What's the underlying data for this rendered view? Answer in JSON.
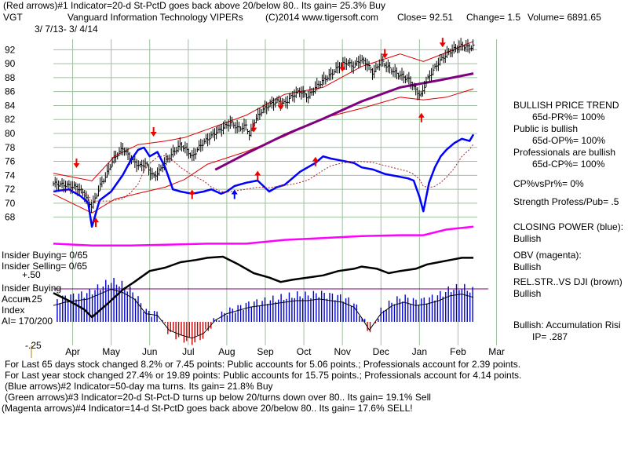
{
  "header": {
    "line1": "(Red arrows)#1 Indicator=20-d St-PctD goes back above 20/below 80..  Its gain= 25.3% Buy",
    "symbol": "VGT",
    "title": "Vanguard Information Technology VIPERs",
    "copyright": "(C)2014 www.tigersoft.com",
    "close": "Close=  92.51",
    "change": "Change= 1.5",
    "volume": "Volume= 6891.65",
    "date_range": "3/ 7/13- 3/ 4/14"
  },
  "right_panel": {
    "l1": "BULLISH PRICE TREND",
    "l2": "65d-PR%= 100%",
    "l3": "Public is bullish",
    "l4": "65d-OP%= 100%",
    "l5": "Professionals are bullish",
    "l6": "65d-CP%= 100%",
    "l7": "CP%vsPr%=  0%",
    "l8": "Strength Profess/Pub= .5",
    "l9": "CLOSING POWER (blue):",
    "l10": "Bullish",
    "l11": "OBV (magenta):",
    "l12": "Bullish",
    "l13": "REL.STR..VS DJI (brown)",
    "l14": "Bullish",
    "l15": "Bullish: Accumulation Risi",
    "l16": "IP=  .287"
  },
  "left_labels": {
    "insider_buying_ratio": "Insider Buying= 0/65",
    "insider_selling_ratio": "Insider Selling= 0/65",
    "plus50": "+.50",
    "insider_buying": "Insider Buying",
    "accum": "Accum",
    "plus25": "+.25",
    "index": "Index",
    "ai": "AI= 170/200",
    "minus25": "-.25"
  },
  "footer": {
    "f1": "For Last 65 days stock changed  8.2% or  7.45 points:  Public accounts for  5.06 points.;  Professionals account for  2.39 points.",
    "f2": "For Last year stock changed  27.4% or  19.89 points:  Public accounts for  15.75 points.;  Professionals account for  4.14 points.",
    "f3": "(Blue arrows)#2 Indicator=50-day ma turns. Its gain= 21.8% Buy",
    "f4": "(Green arrows)#3 Indicator=20-d St-Pct-D turns up below 20/turns down over 80.. Its gain= 19.1% Sell",
    "f5": "(Magenta arrows)#4 Indicator=14-d St-PctD goes back above 20/below 80.. Its gain= 17.6% SELL!"
  },
  "colors": {
    "price": "#000000",
    "bands": "#dd0000",
    "ma50": "#800080",
    "closing_power": "#0000ff",
    "obv": "#ff00ff",
    "rel_strength": "#000000",
    "accum_pos": "#0000cc",
    "accum_neg": "#cc0000",
    "grid": "#9ebf9e"
  },
  "chart_data": {
    "type": "line",
    "title": "Vanguard Information Technology VIPERs",
    "x_ticks": [
      "Apr",
      "May",
      "Jun",
      "Jul",
      "Aug",
      "Sep",
      "Oct",
      "Nov",
      "Dec",
      "Jan",
      "Feb",
      "Mar"
    ],
    "y_ticks": [
      68,
      70,
      72,
      74,
      76,
      78,
      80,
      82,
      84,
      86,
      88,
      90,
      92
    ],
    "ylim": [
      66.5,
      93.5
    ],
    "grid": true,
    "price_series": {
      "x": [
        0,
        0.3,
        0.6,
        0.8,
        0.9,
        1.0,
        1.1,
        1.2,
        1.35,
        1.5,
        1.6,
        1.8,
        1.95,
        2.1,
        2.25,
        2.4,
        2.5,
        2.6,
        2.75,
        2.9,
        3.1,
        3.3,
        3.5,
        3.6,
        3.8,
        4.0,
        4.2,
        4.4,
        4.6,
        4.8,
        5.0,
        5.1,
        5.2,
        5.4,
        5.6,
        5.8,
        6.0,
        6.2,
        6.4,
        6.6,
        6.8,
        7.0,
        7.2,
        7.4,
        7.6,
        7.8,
        7.95,
        8.1,
        8.3,
        8.5,
        8.7,
        8.9,
        9.1,
        9.25,
        9.4,
        9.5,
        9.55,
        9.65,
        9.8,
        10.0,
        10.2,
        10.4,
        10.6,
        10.8,
        10.9
      ],
      "y": [
        72.8,
        72.6,
        72.3,
        71.4,
        70.2,
        69.6,
        70.8,
        72.4,
        73.8,
        75.6,
        76.6,
        77.9,
        76.8,
        75.9,
        75.3,
        75.7,
        74.6,
        73.8,
        74.6,
        75.9,
        77.2,
        78.4,
        77.4,
        76.6,
        78.2,
        79.2,
        80.1,
        80.8,
        81.6,
        80.7,
        81.1,
        79.6,
        81.6,
        83.2,
        84.1,
        84.6,
        84.3,
        85.4,
        86.1,
        85.2,
        86.6,
        87.6,
        88.4,
        89.6,
        90.2,
        89.6,
        90.6,
        90.2,
        88.6,
        90.4,
        89.4,
        88.6,
        88.1,
        87.6,
        86.2,
        85.6,
        85.4,
        87.2,
        88.6,
        90.2,
        91.4,
        92.1,
        92.6,
        92.3,
        92.51
      ],
      "close": 92.51,
      "change": 1.5,
      "volume": 6891.65
    },
    "ma50": {
      "x": [
        4.2,
        5.0,
        6.0,
        7.0,
        8.0,
        9.0,
        10.0,
        10.9
      ],
      "y": [
        74.8,
        77.1,
        79.8,
        82.1,
        84.6,
        86.6,
        87.6,
        88.6
      ]
    },
    "upper_band": {
      "x": [
        0,
        1.0,
        1.6,
        2.2,
        2.9,
        3.4,
        4.0,
        5.0,
        6.0,
        7.0,
        8.0,
        9.0,
        9.6,
        10.2,
        10.9
      ],
      "y": [
        74.3,
        73.2,
        76.8,
        78.4,
        78.9,
        79.4,
        80.6,
        82.6,
        85.6,
        86.6,
        89.6,
        91.4,
        90.3,
        91.6,
        93.2
      ]
    },
    "lower_band": {
      "x": [
        0,
        1.0,
        1.6,
        2.2,
        2.9,
        3.4,
        4.0,
        5.0,
        6.0,
        7.0,
        8.0,
        9.0,
        9.6,
        10.2,
        10.9
      ],
      "y": [
        71.3,
        68.6,
        70.6,
        71.4,
        72.3,
        73.4,
        75.6,
        77.4,
        79.6,
        82.2,
        83.6,
        85.2,
        84.8,
        85.2,
        86.4
      ]
    },
    "red_arrows_down": {
      "x": [
        0.6,
        2.6,
        5.2,
        5.9,
        7.5,
        8.6,
        10.1
      ],
      "y": [
        75.5,
        80.0,
        80.6,
        83.8,
        89.3,
        91.2,
        92.8
      ]
    },
    "red_arrows_up": {
      "x": [
        1.1,
        3.6,
        5.3,
        6.8,
        9.55
      ],
      "y": [
        67.5,
        71.5,
        74.2,
        76.2,
        82.5
      ]
    },
    "blue_arrows_up": {
      "x": [
        4.7
      ],
      "y": [
        71.5
      ]
    },
    "closing_power": {
      "x": [
        0,
        0.4,
        0.7,
        0.9,
        1.0,
        1.2,
        1.5,
        1.8,
        2.0,
        2.2,
        2.35,
        2.5,
        2.7,
        2.9,
        3.1,
        3.3,
        3.6,
        3.9,
        4.1,
        4.35,
        4.5,
        4.7,
        5.0,
        5.3,
        5.6,
        5.8,
        6.0,
        6.2,
        6.4,
        6.6,
        6.8,
        7.0,
        7.2,
        7.5,
        7.8,
        8.0,
        8.3,
        8.6,
        8.9,
        9.2,
        9.35,
        9.5,
        9.6,
        9.75,
        9.9,
        10.05,
        10.2,
        10.4,
        10.6,
        10.8,
        10.9
      ],
      "v": [
        0.4,
        0.42,
        0.36,
        0.3,
        0.08,
        0.32,
        0.4,
        0.55,
        0.68,
        0.78,
        0.8,
        0.72,
        0.76,
        0.62,
        0.42,
        0.4,
        0.38,
        0.4,
        0.42,
        0.38,
        0.4,
        0.45,
        0.48,
        0.5,
        0.4,
        0.44,
        0.46,
        0.52,
        0.58,
        0.62,
        0.66,
        0.72,
        0.7,
        0.68,
        0.66,
        0.62,
        0.6,
        0.56,
        0.54,
        0.52,
        0.5,
        0.35,
        0.22,
        0.48,
        0.62,
        0.72,
        0.78,
        0.84,
        0.88,
        0.86,
        0.92
      ]
    },
    "obv": {
      "x": [
        0,
        1.0,
        2.0,
        3.0,
        4.0,
        5.0,
        6.0,
        7.0,
        8.0,
        9.0,
        9.6,
        10.2,
        10.9
      ],
      "v": [
        0.08,
        0.06,
        0.06,
        0.07,
        0.08,
        0.08,
        0.12,
        0.14,
        0.16,
        0.17,
        0.17,
        0.23,
        0.26
      ]
    },
    "rel_strength": {
      "x": [
        0,
        0.4,
        0.8,
        1.0,
        1.4,
        1.8,
        2.1,
        2.5,
        2.9,
        3.3,
        3.7,
        4.0,
        4.4,
        4.8,
        5.2,
        5.6,
        5.9,
        6.2,
        6.6,
        7.0,
        7.4,
        7.8,
        8.0,
        8.4,
        8.7,
        9.0,
        9.4,
        9.7,
        10.0,
        10.3,
        10.6,
        10.9
      ],
      "v": [
        0.62,
        0.55,
        0.47,
        0.4,
        0.52,
        0.65,
        0.72,
        0.82,
        0.85,
        0.9,
        0.92,
        0.94,
        0.95,
        0.88,
        0.8,
        0.76,
        0.72,
        0.74,
        0.76,
        0.78,
        0.82,
        0.84,
        0.86,
        0.84,
        0.8,
        0.82,
        0.84,
        0.88,
        0.9,
        0.92,
        0.94,
        0.94
      ]
    },
    "accumulation_index": {
      "x": [
        0,
        0.3,
        0.6,
        0.9,
        1.2,
        1.5,
        1.8,
        2.1,
        2.4,
        2.7,
        3.0,
        3.3,
        3.6,
        3.9,
        4.2,
        4.5,
        4.8,
        5.1,
        5.4,
        5.7,
        6.0,
        6.3,
        6.6,
        6.9,
        7.2,
        7.5,
        7.8,
        8.0,
        8.2,
        8.5,
        8.8,
        9.1,
        9.4,
        9.7,
        10.0,
        10.3,
        10.6,
        10.9
      ],
      "v": [
        0.2,
        0.24,
        0.26,
        0.28,
        0.34,
        0.4,
        0.36,
        0.28,
        0.1,
        0.08,
        -0.1,
        -0.16,
        -0.2,
        -0.14,
        0.02,
        0.1,
        0.14,
        0.18,
        0.2,
        0.22,
        0.24,
        0.26,
        0.26,
        0.28,
        0.26,
        0.24,
        0.18,
        0.05,
        -0.1,
        0.1,
        0.2,
        0.24,
        0.2,
        0.22,
        0.26,
        0.32,
        0.34,
        0.3
      ]
    },
    "accum_levels": [
      "+.25",
      "-.25"
    ]
  }
}
